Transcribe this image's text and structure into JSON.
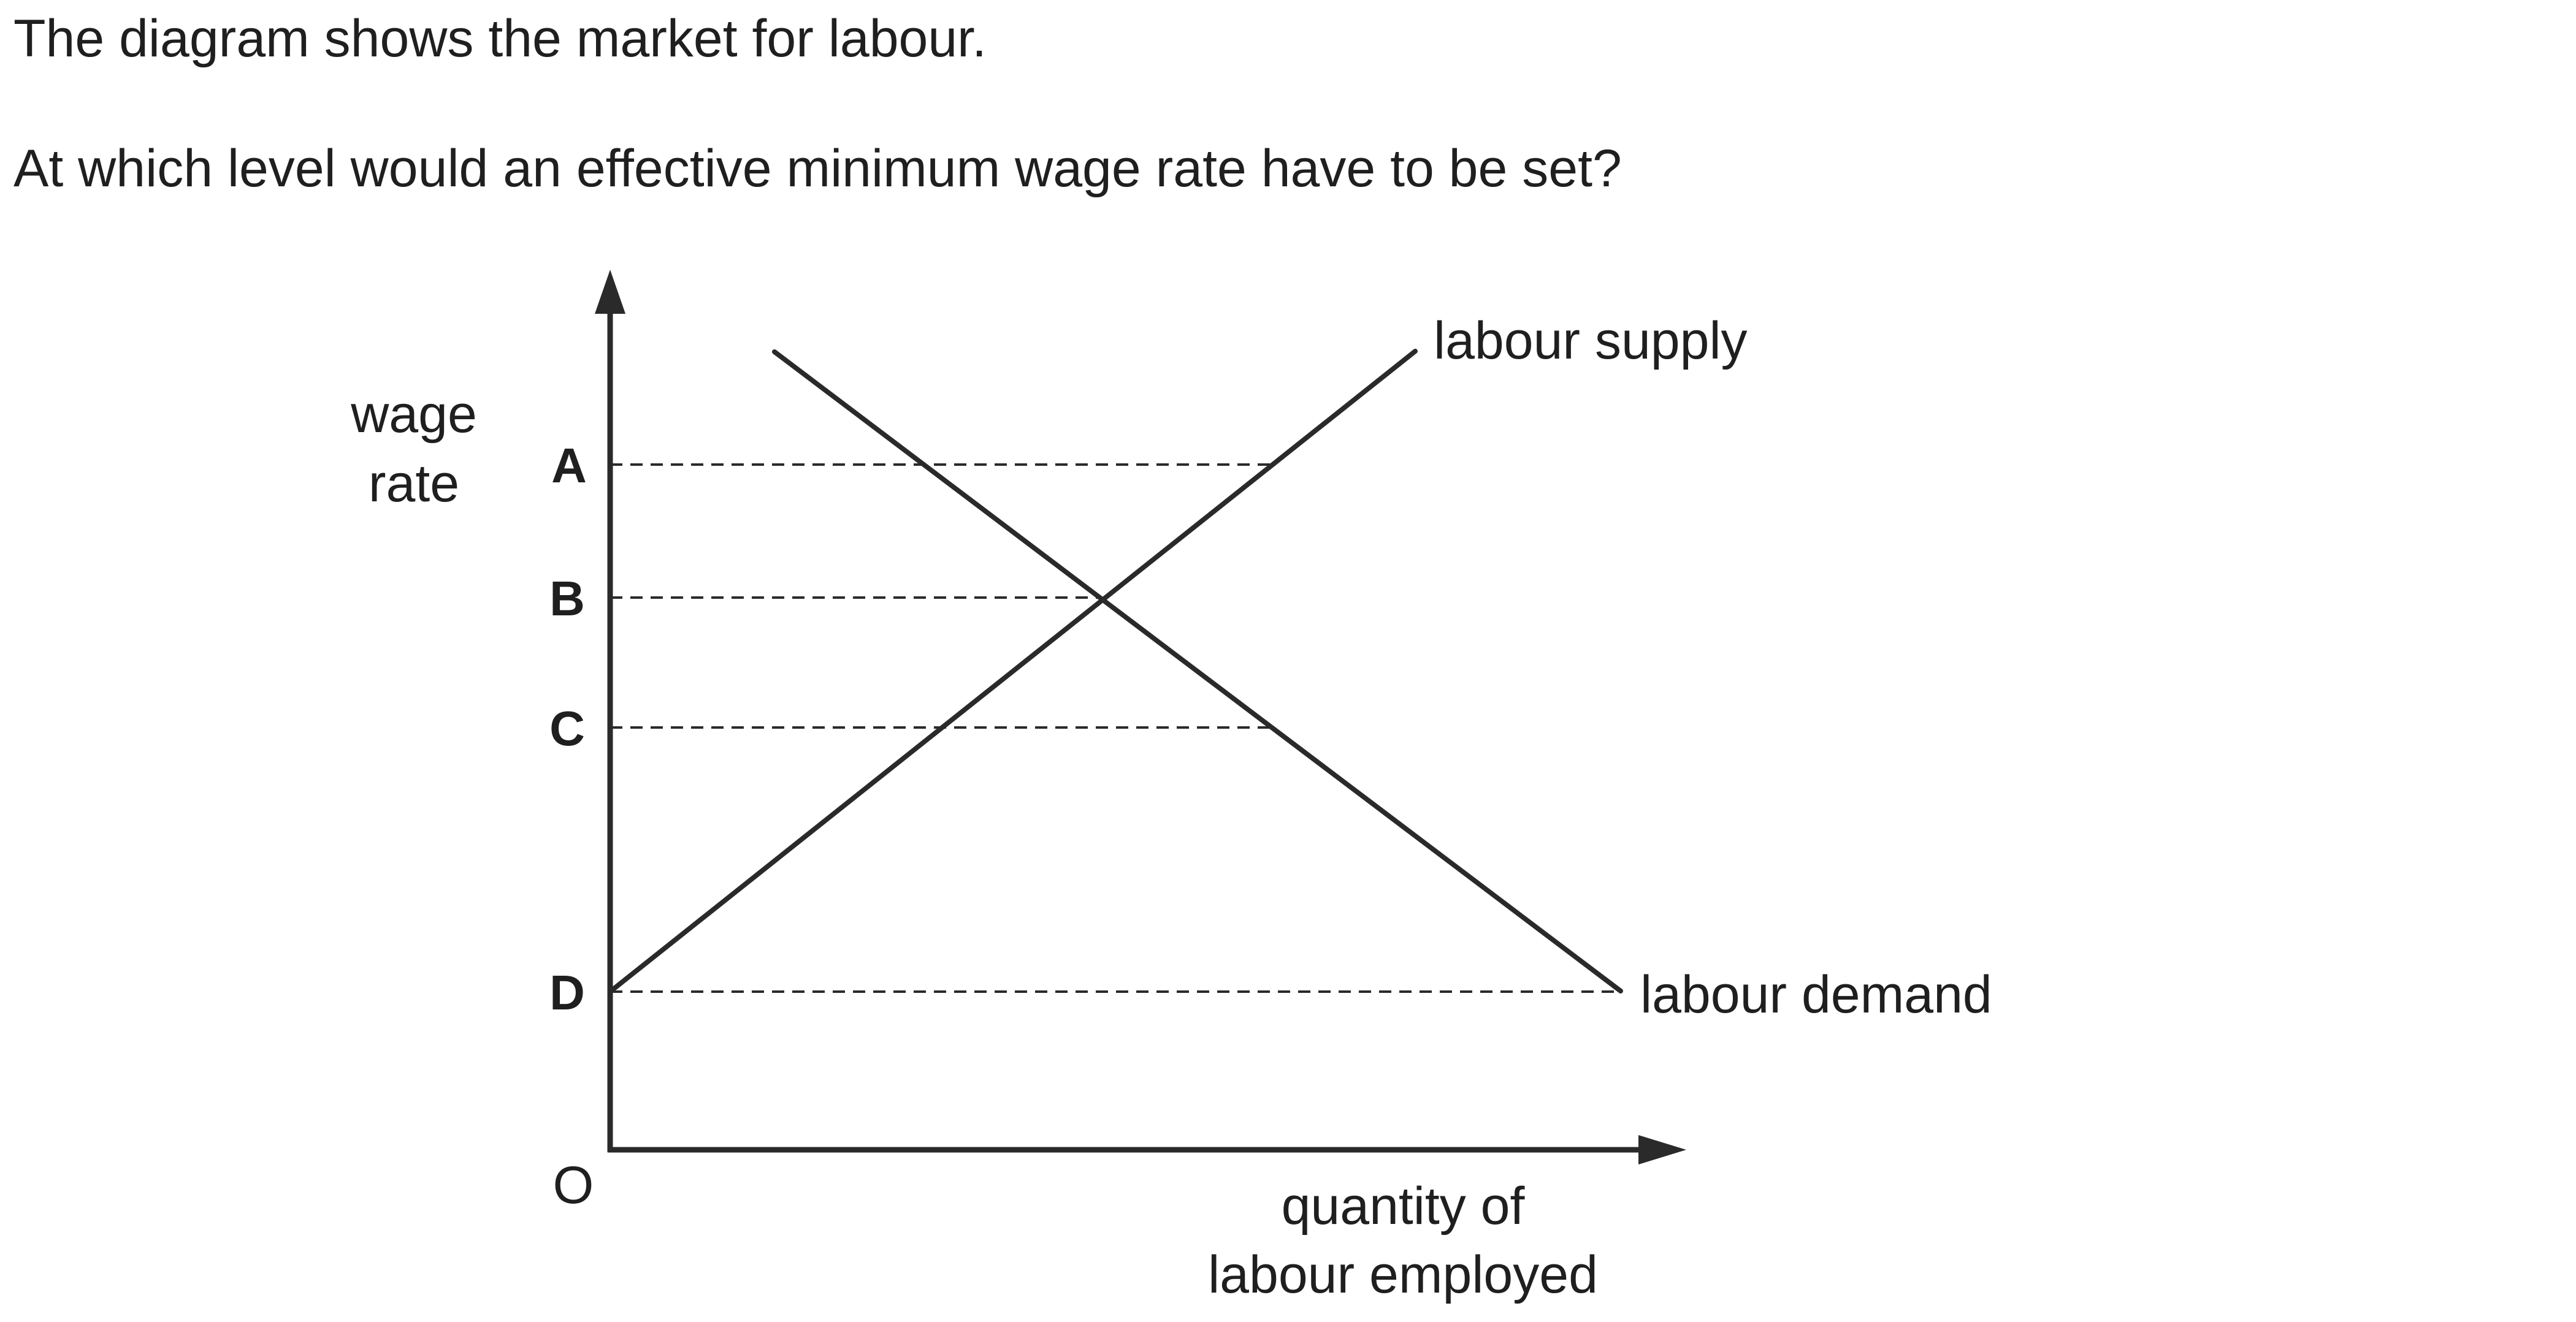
{
  "question": {
    "line1": "The diagram shows the market for labour.",
    "line2": "At which level would an effective minimum wage rate have to be set?"
  },
  "diagram": {
    "y_axis_label_line1": "wage",
    "y_axis_label_line2": "rate",
    "x_axis_label_line1": "quantity of",
    "x_axis_label_line2": "labour employed",
    "origin_label": "O",
    "level_labels": [
      "A",
      "B",
      "C",
      "D"
    ],
    "supply_label": "labour supply",
    "demand_label": "labour demand",
    "line_color": "#2a2a2a"
  }
}
